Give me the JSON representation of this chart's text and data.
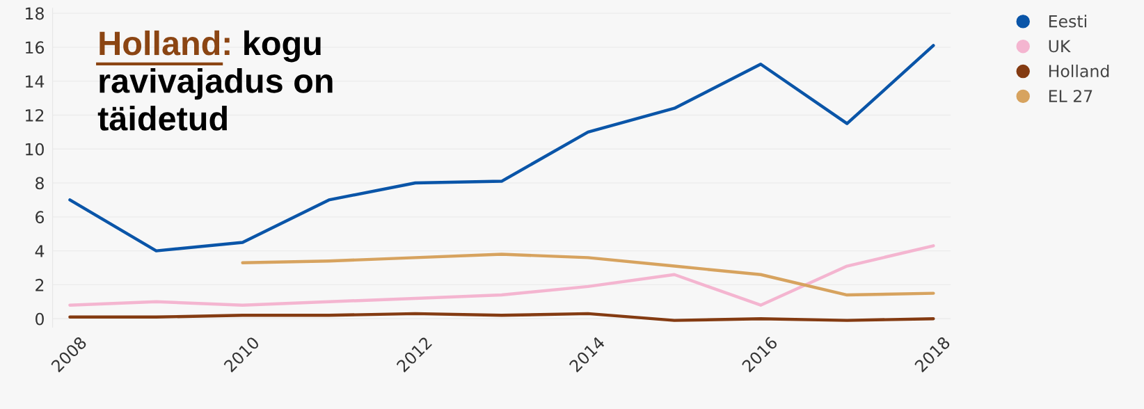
{
  "chart_data": {
    "type": "line",
    "x": [
      2008,
      2009,
      2010,
      2011,
      2012,
      2013,
      2014,
      2015,
      2016,
      2017,
      2018
    ],
    "series": [
      {
        "name": "Eesti",
        "color": "#0a55a8",
        "values": [
          7,
          4,
          4.5,
          7,
          8,
          8.1,
          11,
          12.4,
          15,
          11.5,
          16.1
        ]
      },
      {
        "name": "UK",
        "color": "#f4b5d0",
        "values": [
          0.8,
          1.0,
          0.8,
          1.0,
          1.2,
          1.4,
          1.9,
          2.6,
          0.8,
          3.1,
          4.3
        ]
      },
      {
        "name": "Holland",
        "color": "#843b12",
        "values": [
          0.1,
          0.1,
          0.2,
          0.2,
          0.3,
          0.2,
          0.3,
          -0.1,
          0.0,
          -0.1,
          0.0
        ]
      },
      {
        "name": "EL 27",
        "color": "#d7a35f",
        "values": [
          null,
          null,
          3.3,
          3.4,
          3.6,
          3.8,
          3.6,
          3.1,
          2.6,
          1.4,
          1.5
        ]
      }
    ],
    "annotations": [
      "Holland: kogu\nravivajadus on\ntäidetud"
    ],
    "xlim": [
      2007.8,
      2018.2
    ],
    "xticks": [
      2008,
      2010,
      2012,
      2014,
      2016,
      2018
    ],
    "ylim": [
      -0.5,
      18.3
    ],
    "yticks": [
      0,
      2,
      4,
      6,
      8,
      10,
      12,
      14,
      16,
      18
    ],
    "grid": "y",
    "legend": "top right",
    "marker": "none",
    "line_style": "solid"
  }
}
